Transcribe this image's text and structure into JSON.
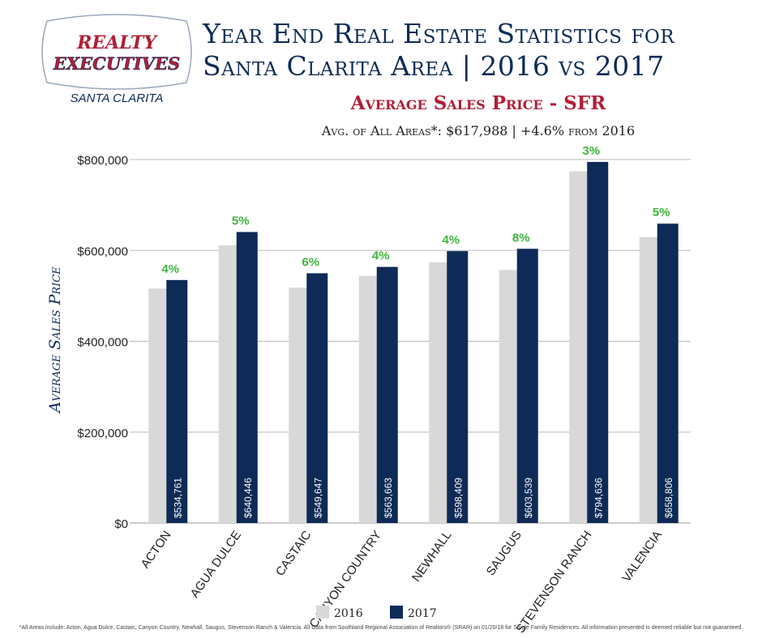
{
  "logo": {
    "line1": "REALTY",
    "line2": "EXECUTIVES",
    "location": "SANTA CLARITA"
  },
  "header": {
    "title_line1": "Year End Real Estate Statistics for",
    "title_line2": "Santa Clarita Area | 2016 vs 2017",
    "subtitle": "Average Sales Price - SFR",
    "avg_label": "Avg. of All Areas*:",
    "avg_value": "$617,988 | +4.6% from 2016"
  },
  "footnote": "*All Areas include: Acton, Agua Dulce, Castaic, Canyon Country, Newhall, Saugus, Stevenson Ranch & Valencia. All Data from Southland Regional Association of Realtors® (SRAR) on 01/20/18 for Single Family Residences. All information presented is deemed reliable but not guaranteed.",
  "colors": {
    "navy": "#0d2b56",
    "gray": "#d8d8d8",
    "green": "#3db53d",
    "red": "#b01e35"
  },
  "chart_data": {
    "type": "bar",
    "ylabel": "Average Sales Price",
    "xlabel": "",
    "ylim": [
      0,
      800000
    ],
    "yticks": [
      0,
      200000,
      400000,
      600000,
      800000
    ],
    "ytick_labels": [
      "$0",
      "$200,000",
      "$400,000",
      "$600,000",
      "$800,000"
    ],
    "grid": true,
    "legend": "bottom-center",
    "categories": [
      "ACTON",
      "AGUA DULCE",
      "CASTAIC",
      "CANYON COUNTRY",
      "NEWHALL",
      "SAUGUS",
      "STEVENSON RANCH",
      "VALENCIA"
    ],
    "series": [
      {
        "name": "2016",
        "values": [
          516000,
          611000,
          518000,
          544000,
          574000,
          557000,
          774000,
          629000
        ]
      },
      {
        "name": "2017",
        "values": [
          534761,
          640446,
          549647,
          563663,
          598409,
          603539,
          794636,
          658806
        ]
      }
    ],
    "value_labels": [
      "$534,761",
      "$640,446",
      "$549,647",
      "$563,663",
      "$598,409",
      "$603,539",
      "$794,636",
      "$658,806"
    ],
    "change_labels": [
      "4%",
      "5%",
      "6%",
      "4%",
      "4%",
      "8%",
      "3%",
      "5%"
    ]
  }
}
